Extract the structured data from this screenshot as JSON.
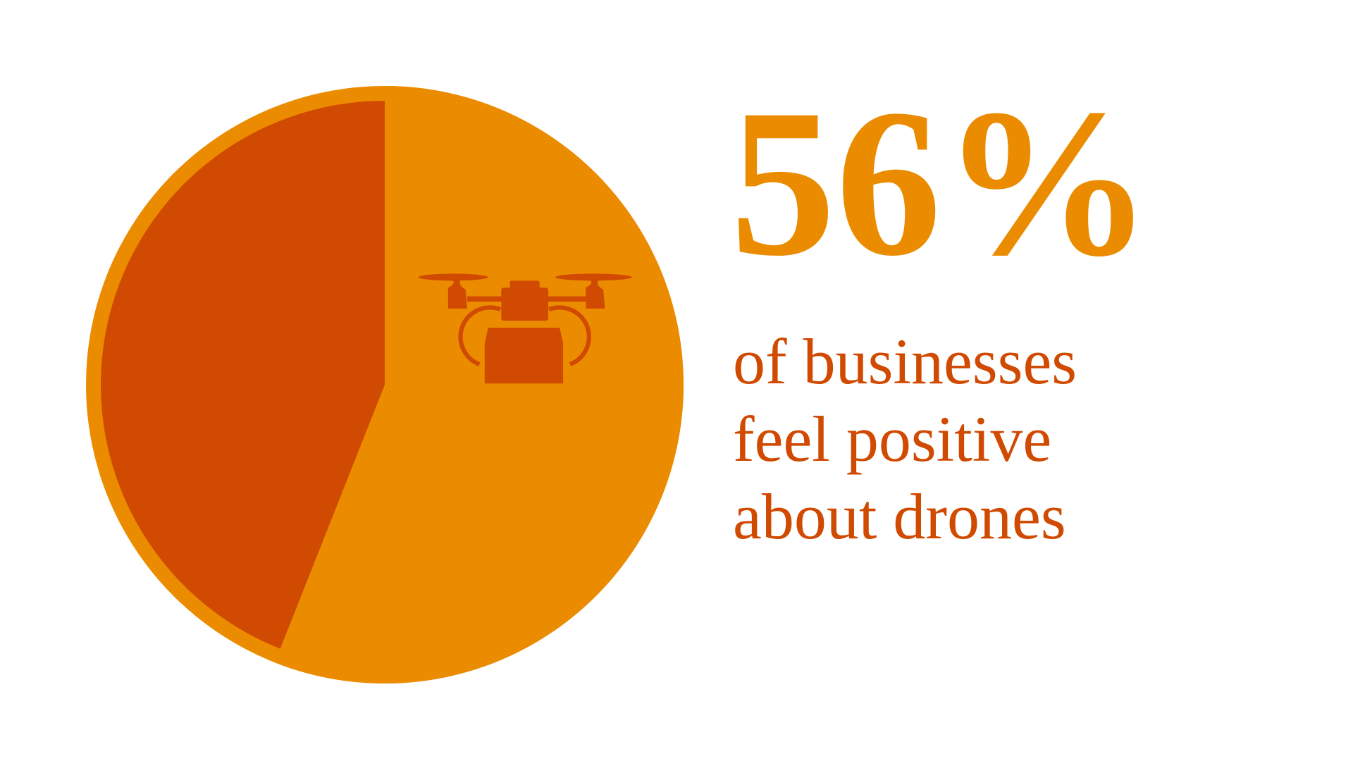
{
  "chart_data": {
    "type": "pie",
    "values": [
      56,
      44
    ],
    "value_labels": [
      "56%",
      null
    ],
    "colors": [
      "#eb8c00",
      "#d04a02"
    ],
    "caption": [
      "of businesses",
      "feel positive",
      "about drones"
    ]
  }
}
